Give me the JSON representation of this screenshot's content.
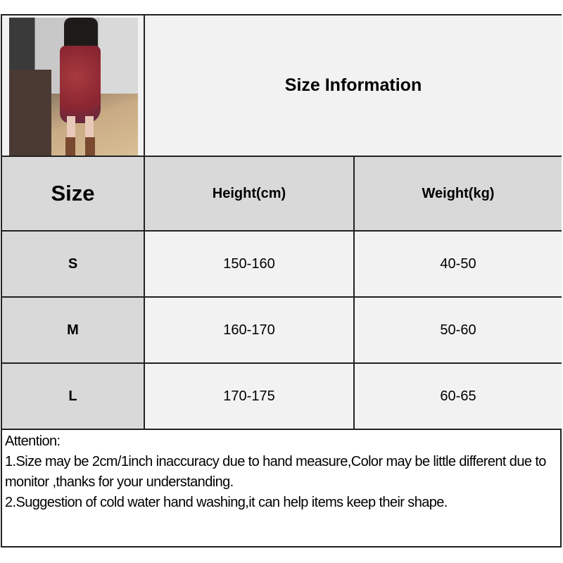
{
  "title": "Size Information",
  "table": {
    "headers": [
      "Size",
      "Height(cm)",
      "Weight(kg)"
    ],
    "rows": [
      {
        "size": "S",
        "height": "150-160",
        "weight": "40-50"
      },
      {
        "size": "M",
        "height": "160-170",
        "weight": "50-60"
      },
      {
        "size": "L",
        "height": "170-175",
        "weight": "60-65"
      }
    ]
  },
  "notes": {
    "heading": "Attention:",
    "items": [
      "1.Size may be 2cm/1inch inaccuracy due to hand measure,Color may be little different due to monitor ,thanks for your understanding.",
      "2.Suggestion of cold water hand washing,it can help items keep their shape."
    ]
  },
  "colors": {
    "header_bg": "#d9d9d9",
    "cell_bg": "#f2f2f2",
    "border": "#222222"
  }
}
